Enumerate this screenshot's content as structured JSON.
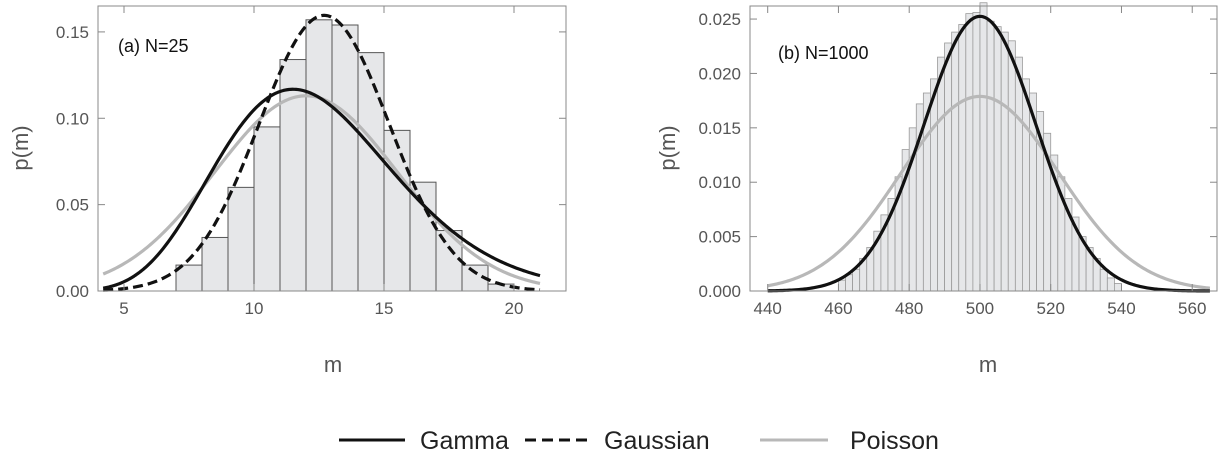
{
  "chart_data": [
    {
      "type": "bar",
      "annotation": "(a) N=25",
      "xlabel": "m",
      "ylabel": "p(m)",
      "xlim": [
        4,
        22
      ],
      "ylim": [
        0,
        0.165
      ],
      "xticks": [
        5,
        10,
        15,
        20
      ],
      "yticks": [
        0.0,
        0.05,
        0.1,
        0.15
      ],
      "ytick_labels": [
        "0.00",
        "0.05",
        "0.10",
        "0.15"
      ],
      "histogram": {
        "bin_width": 1,
        "bin_starts": [
          7,
          8,
          9,
          10,
          11,
          12,
          13,
          14,
          15,
          16,
          17,
          18,
          19
        ],
        "values": [
          0.015,
          0.031,
          0.06,
          0.095,
          0.134,
          0.157,
          0.154,
          0.138,
          0.093,
          0.063,
          0.035,
          0.015,
          0.004
        ]
      },
      "curves": [
        {
          "name": "Gamma",
          "model": "gamma",
          "params": {
            "shape": 12.5,
            "scale": 1.0
          },
          "color": "#111111",
          "style": "solid"
        },
        {
          "name": "Gaussian",
          "model": "gaussian",
          "params": {
            "mean": 12.7,
            "sd": 2.5
          },
          "color": "#111111",
          "style": "dashed"
        },
        {
          "name": "Poisson",
          "model": "gaussian",
          "params": {
            "mean": 12.0,
            "sd": 3.53
          },
          "color": "#b8b8b8",
          "style": "solid"
        }
      ],
      "curve_range": [
        4.2,
        21
      ]
    },
    {
      "type": "bar",
      "annotation": "(b) N=1000",
      "xlabel": "m",
      "ylabel": "p(m)",
      "xlim": [
        435,
        567
      ],
      "ylim": [
        0,
        0.0262
      ],
      "xticks": [
        440,
        460,
        480,
        500,
        520,
        540,
        560
      ],
      "yticks": [
        0.0,
        0.005,
        0.01,
        0.015,
        0.02,
        0.025
      ],
      "ytick_labels": [
        "0.000",
        "0.005",
        "0.010",
        "0.015",
        "0.020",
        "0.025"
      ],
      "histogram": {
        "bin_width": 2,
        "bin_starts": [
          460,
          462,
          464,
          466,
          468,
          470,
          472,
          474,
          476,
          478,
          480,
          482,
          484,
          486,
          488,
          490,
          492,
          494,
          496,
          498,
          500,
          502,
          504,
          506,
          508,
          510,
          512,
          514,
          516,
          518,
          520,
          522,
          524,
          526,
          528,
          530,
          532,
          534,
          536,
          538
        ],
        "values": [
          0.001,
          0.0015,
          0.002,
          0.003,
          0.004,
          0.0055,
          0.007,
          0.0085,
          0.0105,
          0.013,
          0.015,
          0.0172,
          0.0182,
          0.0195,
          0.0215,
          0.0228,
          0.0238,
          0.0245,
          0.0255,
          0.0256,
          0.0265,
          0.0248,
          0.0243,
          0.0238,
          0.023,
          0.0215,
          0.0195,
          0.0182,
          0.0165,
          0.0145,
          0.0125,
          0.0105,
          0.0085,
          0.0068,
          0.005,
          0.004,
          0.003,
          0.002,
          0.0012,
          0.0007
        ]
      },
      "curves": [
        {
          "name": "Gamma",
          "model": "gaussian",
          "params": {
            "mean": 500,
            "sd": 15.8
          },
          "color": "#111111",
          "style": "solid"
        },
        {
          "name": "Poisson",
          "model": "gaussian",
          "params": {
            "mean": 500,
            "sd": 22.3
          },
          "color": "#b8b8b8",
          "style": "solid"
        }
      ],
      "curve_range": [
        440,
        565
      ]
    }
  ],
  "legend": {
    "placement": "bottom-center",
    "items": [
      {
        "label": "Gamma",
        "color": "#111111",
        "style": "solid"
      },
      {
        "label": "Gaussian",
        "color": "#111111",
        "style": "dashed"
      },
      {
        "label": "Poisson",
        "color": "#b8b8b8",
        "style": "solid"
      }
    ]
  }
}
